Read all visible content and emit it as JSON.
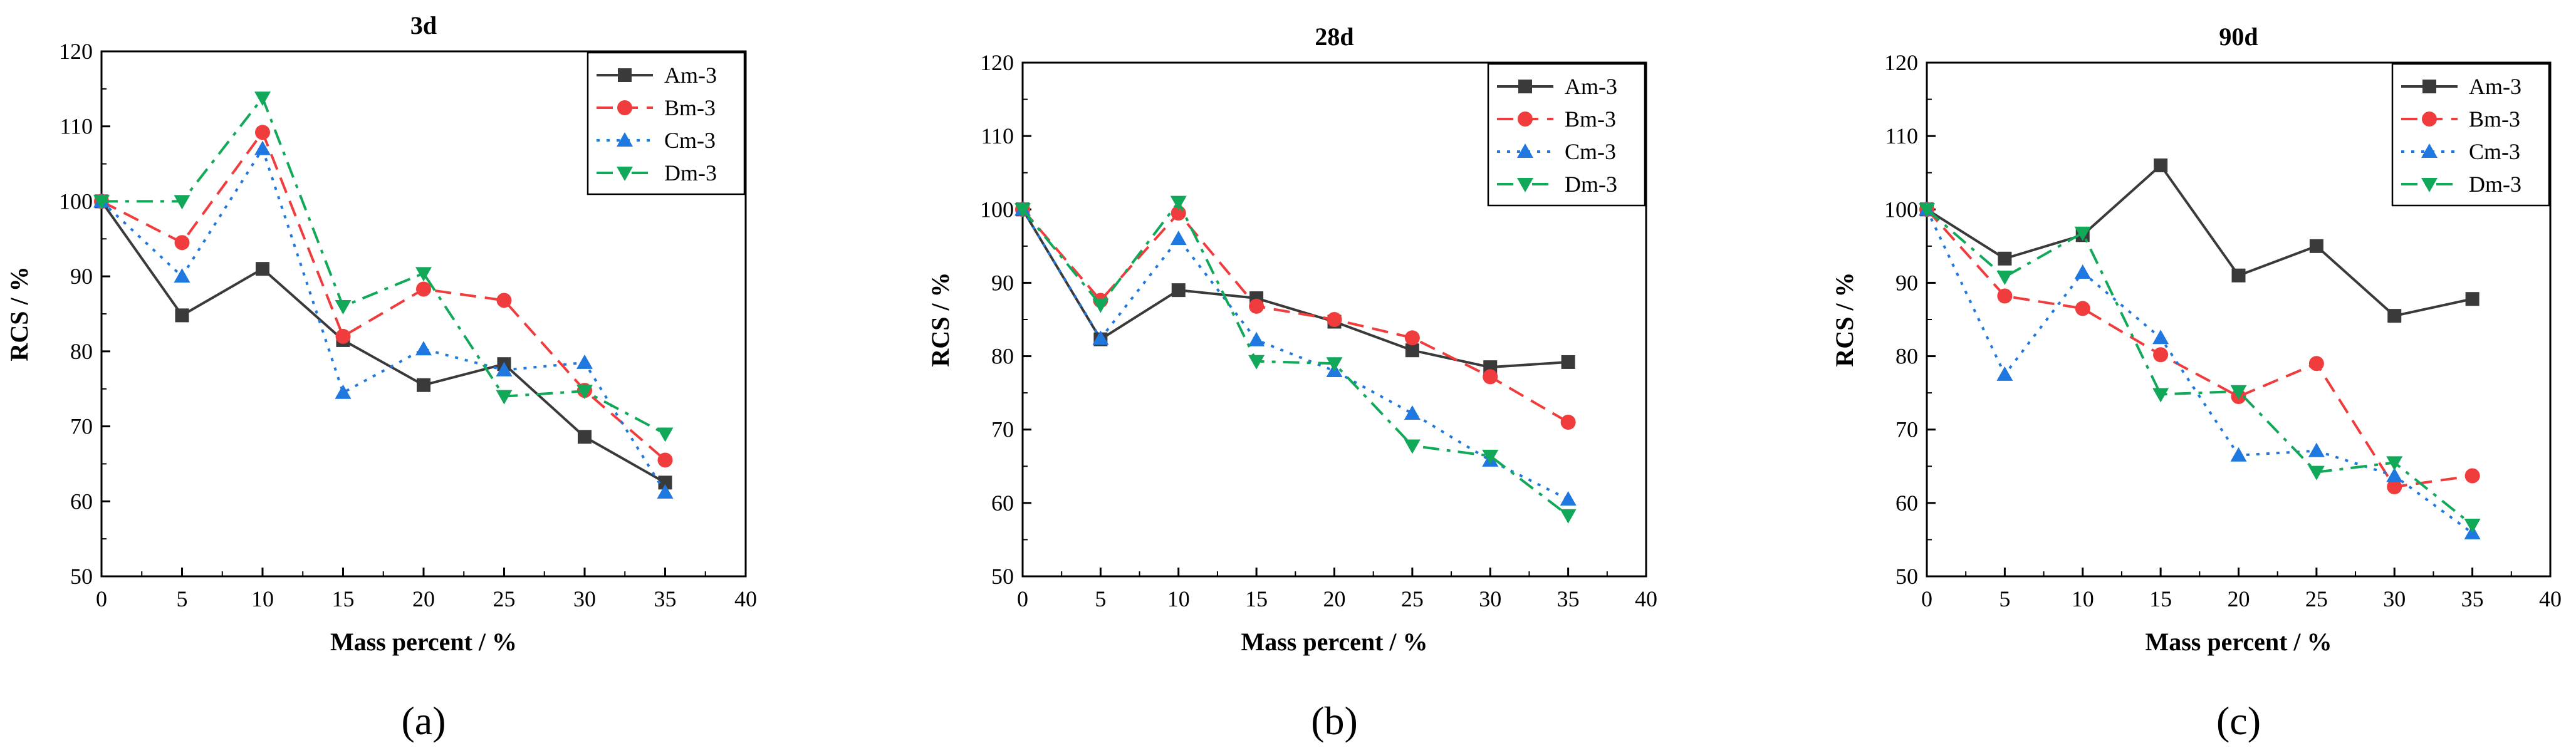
{
  "chart_data": [
    {
      "type": "line",
      "title": "3d",
      "panel_label": "(a)",
      "xlabel": "Mass percent / %",
      "ylabel": "RCS / %",
      "xlim": [
        0,
        40
      ],
      "ylim": [
        50,
        120
      ],
      "xticks": [
        0,
        5,
        10,
        15,
        20,
        25,
        30,
        35,
        40
      ],
      "yticks": [
        50,
        60,
        70,
        80,
        90,
        100,
        110,
        120
      ],
      "legend": "top-right",
      "x": [
        0,
        5,
        10,
        15,
        20,
        25,
        30,
        35
      ],
      "series": [
        {
          "name": "Am-3",
          "values": [
            100,
            84.8,
            91,
            81.5,
            75.5,
            78.3,
            68.6,
            62.5
          ]
        },
        {
          "name": "Bm-3",
          "values": [
            100,
            94.5,
            109.2,
            82,
            88.3,
            86.8,
            74.8,
            65.5
          ]
        },
        {
          "name": "Cm-3",
          "values": [
            100,
            90,
            107,
            74.5,
            80.3,
            77.5,
            78.5,
            61.2
          ]
        },
        {
          "name": "Dm-3",
          "values": [
            100,
            100,
            113.8,
            86,
            90.4,
            74,
            74.7,
            69
          ]
        }
      ]
    },
    {
      "type": "line",
      "title": "28d",
      "panel_label": "(b)",
      "xlabel": "Mass percent / %",
      "ylabel": "RCS / %",
      "xlim": [
        0,
        40
      ],
      "ylim": [
        50,
        120
      ],
      "xticks": [
        0,
        5,
        10,
        15,
        20,
        25,
        30,
        35,
        40
      ],
      "yticks": [
        50,
        60,
        70,
        80,
        90,
        100,
        110,
        120
      ],
      "legend": "top-right",
      "x": [
        0,
        5,
        10,
        15,
        20,
        25,
        30,
        35
      ],
      "series": [
        {
          "name": "Am-3",
          "values": [
            100,
            82.3,
            89,
            87.9,
            84.7,
            80.8,
            78.5,
            79.2
          ]
        },
        {
          "name": "Bm-3",
          "values": [
            100,
            87.6,
            99.5,
            86.8,
            85,
            82.5,
            77.2,
            71
          ]
        },
        {
          "name": "Cm-3",
          "values": [
            100,
            82.4,
            96,
            82.2,
            78,
            72.2,
            65.8,
            60.5
          ]
        },
        {
          "name": "Dm-3",
          "values": [
            100,
            87,
            101,
            79.3,
            79,
            67.8,
            66.4,
            58.3
          ]
        }
      ]
    },
    {
      "type": "line",
      "title": "90d",
      "panel_label": "(c)",
      "xlabel": "Mass percent / %",
      "ylabel": "RCS / %",
      "xlim": [
        0,
        40
      ],
      "ylim": [
        50,
        120
      ],
      "xticks": [
        0,
        5,
        10,
        15,
        20,
        25,
        30,
        35,
        40
      ],
      "yticks": [
        50,
        60,
        70,
        80,
        90,
        100,
        110,
        120
      ],
      "legend": "top-right",
      "x": [
        0,
        5,
        10,
        15,
        20,
        25,
        30,
        35
      ],
      "series": [
        {
          "name": "Am-3",
          "values": [
            100,
            93.3,
            96.5,
            106,
            91,
            95,
            85.5,
            87.8
          ]
        },
        {
          "name": "Bm-3",
          "values": [
            100,
            88.2,
            86.5,
            80.2,
            74.5,
            79,
            62.2,
            63.7
          ]
        },
        {
          "name": "Cm-3",
          "values": [
            100,
            77.5,
            91.4,
            82.5,
            66.5,
            67.1,
            63.7,
            55.9
          ]
        },
        {
          "name": "Dm-3",
          "values": [
            100,
            90.8,
            96.8,
            74.8,
            75.2,
            64.2,
            65.5,
            57
          ]
        }
      ]
    }
  ],
  "series_styles": [
    {
      "color": "#3a3a3a",
      "dash": "solid",
      "marker": "square"
    },
    {
      "color": "#f03c3c",
      "dash": "dashed",
      "marker": "circle"
    },
    {
      "color": "#1f77e0",
      "dash": "dotted",
      "marker": "triangle-up"
    },
    {
      "color": "#12a85a",
      "dash": "dash-dot",
      "marker": "triangle-down"
    }
  ]
}
